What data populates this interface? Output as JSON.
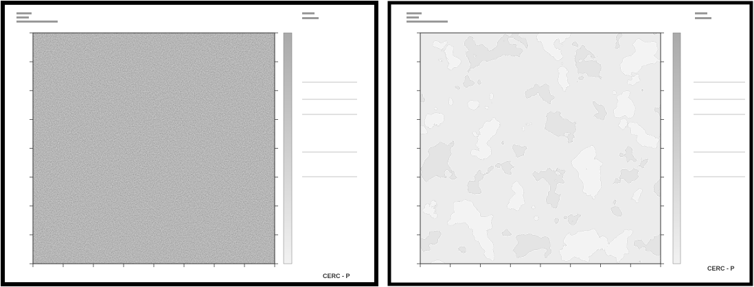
{
  "panels": [
    {
      "stamp": "CERC - P"
    },
    {
      "stamp": "CERC - P"
    }
  ]
}
